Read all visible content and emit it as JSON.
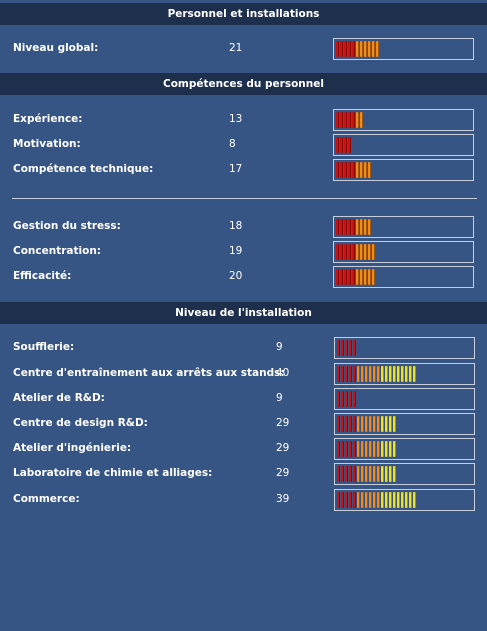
{
  "sections": {
    "personnel_installations": "Personnel et installations",
    "competences": "Compétences du personnel",
    "installation": "Niveau de l'installation"
  },
  "overall": {
    "label": "Niveau global:",
    "value": "21"
  },
  "skills_a": [
    {
      "label": "Expérience:",
      "value": "13"
    },
    {
      "label": "Motivation:",
      "value": "8"
    },
    {
      "label": "Compétence technique:",
      "value": "17"
    }
  ],
  "skills_b": [
    {
      "label": "Gestion du stress:",
      "value": "18"
    },
    {
      "label": "Concentration:",
      "value": "19"
    },
    {
      "label": "Efficacité:",
      "value": "20"
    }
  ],
  "facilities": [
    {
      "label": "Soufflerie:",
      "value": "9"
    },
    {
      "label": "Centre d'entraînement aux arrêts aux stands:",
      "value": "40"
    },
    {
      "label": "Atelier de R&D:",
      "value": "9"
    },
    {
      "label": "Centre de design R&D:",
      "value": "29"
    },
    {
      "label": "Atelier d'ingénierie:",
      "value": "29"
    },
    {
      "label": "Laboratoire de chimie et alliages:",
      "value": "29"
    },
    {
      "label": "Commerce:",
      "value": "39"
    }
  ],
  "colors": {
    "background": "#365585",
    "header": "#1e2f4e",
    "bar_border": "#c7cfdc",
    "seg_red": "#cc1111",
    "seg_orange": "#f28a1e",
    "seg_yellow": "#f0e21e"
  }
}
